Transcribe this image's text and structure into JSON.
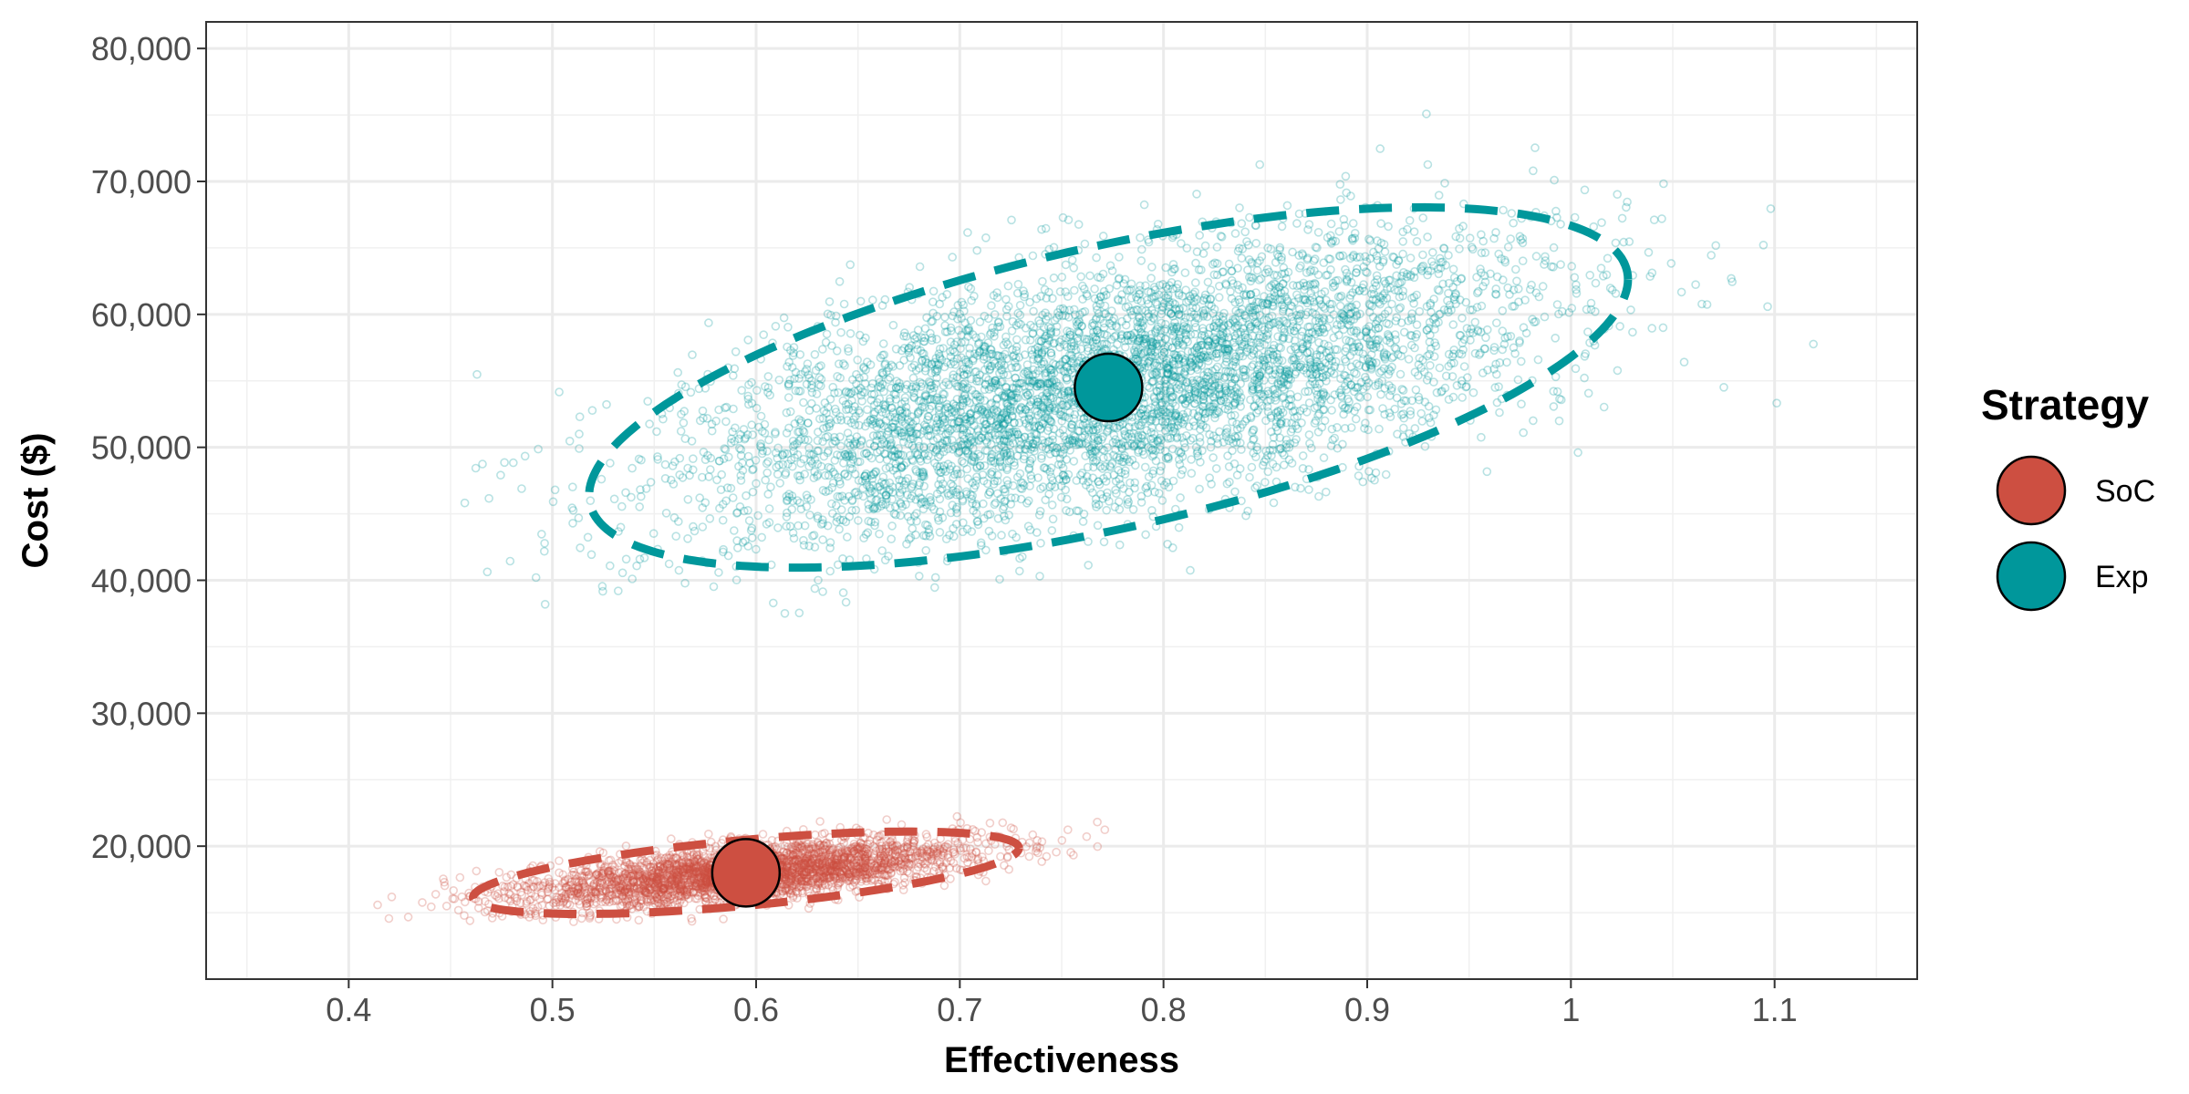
{
  "chart_data": {
    "type": "scatter",
    "title": "",
    "xlabel": "Effectiveness",
    "ylabel": "Cost ($)",
    "xlim": [
      0.33,
      1.17
    ],
    "ylim": [
      10000,
      82000
    ],
    "x_ticks": [
      0.4,
      0.5,
      0.6,
      0.7,
      0.8,
      0.9,
      1.0,
      1.1
    ],
    "x_tick_labels": [
      "0.4",
      "0.5",
      "0.6",
      "0.7",
      "0.8",
      "0.9",
      "1",
      "1.1"
    ],
    "y_ticks": [
      20000,
      30000,
      40000,
      50000,
      60000,
      70000,
      80000
    ],
    "y_tick_labels": [
      "20,000",
      "30,000",
      "40,000",
      "50,000",
      "60,000",
      "70,000",
      "80,000"
    ],
    "grid": true,
    "legend": {
      "title": "Strategy",
      "position": "right"
    },
    "series": [
      {
        "name": "SoC",
        "color": "#CD4F41",
        "mean": {
          "x": 0.595,
          "y": 18000
        },
        "ellipse": {
          "x_range": [
            0.462,
            0.73
          ],
          "y_range": [
            14900,
            21100
          ]
        },
        "cloud": {
          "x_range": [
            0.37,
            0.795
          ],
          "y_range": [
            14200,
            24000
          ],
          "points": 3000
        }
      },
      {
        "name": "Exp",
        "color": "#00979B",
        "mean": {
          "x": 0.773,
          "y": 54500
        },
        "ellipse": {
          "x_range": [
            0.478,
            0.988
          ],
          "y_range": [
            40900,
            68000
          ]
        },
        "cloud": {
          "x_range": [
            0.44,
            1.125
          ],
          "y_range": [
            36300,
            79600
          ],
          "points": 5000
        }
      }
    ]
  }
}
